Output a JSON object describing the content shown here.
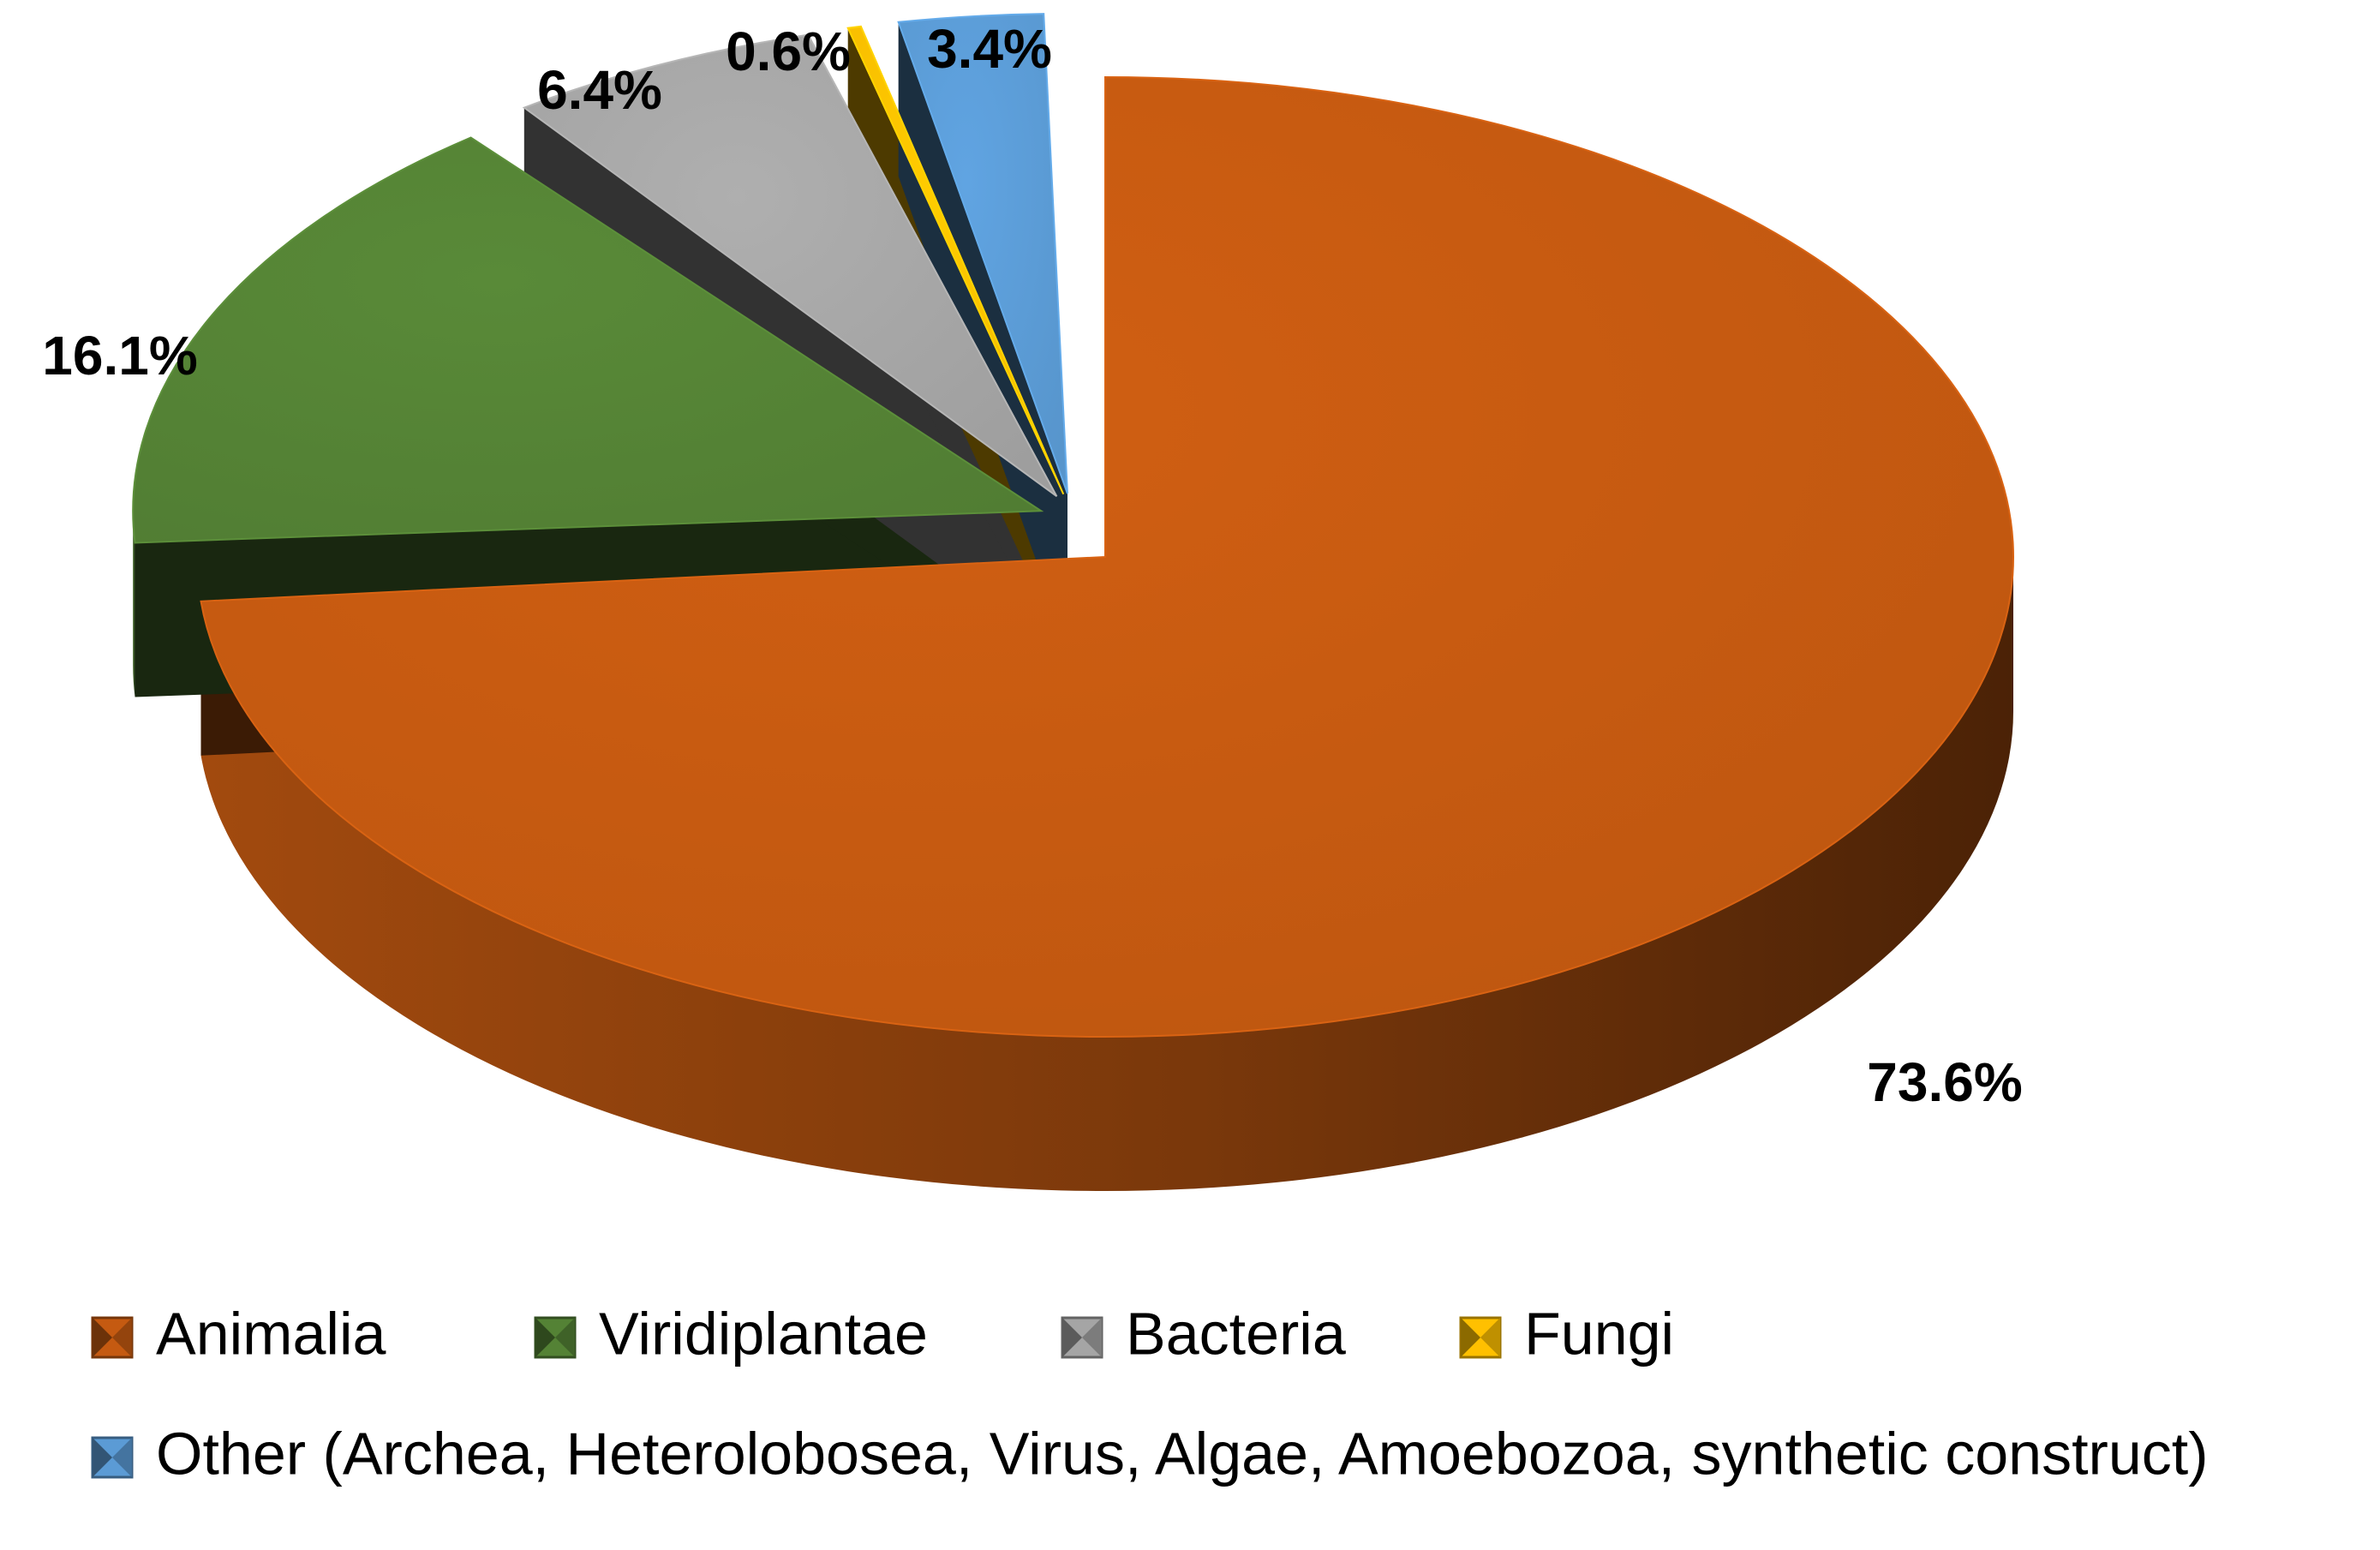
{
  "chart_data": {
    "type": "pie",
    "title": "",
    "style": "3d-exploded",
    "categories": [
      "Animalia",
      "Viridiplantae",
      "Bacteria",
      "Fungi",
      "Other (Archea, Heterolobosea, Virus, Algae, Amoebozoa, synthetic construct)"
    ],
    "values": [
      73.6,
      16.1,
      6.4,
      0.6,
      3.4
    ],
    "labels": [
      "73.6%",
      "16.1%",
      "6.4%",
      "0.6%",
      "3.4%"
    ],
    "colors": [
      "#c55a11",
      "#548235",
      "#a5a5a5",
      "#ffc000",
      "#5b9bd5"
    ],
    "legend_position": "bottom"
  }
}
